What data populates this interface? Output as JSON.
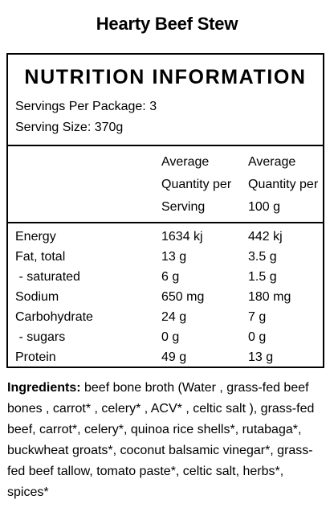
{
  "title": "Hearty Beef Stew",
  "panel": {
    "heading": "NUTRITION INFORMATION",
    "servings_per_package": "Servings Per Package: 3",
    "serving_size": "Serving Size: 370g",
    "columns": [
      [
        "Average",
        "Quantity per",
        "Serving"
      ],
      [
        "Average",
        "Quantity per",
        "100 g"
      ]
    ],
    "rows": [
      {
        "label": "Energy",
        "per_serving": "1634 kj",
        "per_100g": "442 kj"
      },
      {
        "label": "Fat, total",
        "per_serving": "13 g",
        "per_100g": "3.5 g"
      },
      {
        "label": " - saturated",
        "per_serving": "6 g",
        "per_100g": "1.5 g"
      },
      {
        "label": "Sodium",
        "per_serving": "650 mg",
        "per_100g": "180 mg"
      },
      {
        "label": "Carbohydrate",
        "per_serving": "24 g",
        "per_100g": "7 g"
      },
      {
        "label": " - sugars",
        "per_serving": "0 g",
        "per_100g": "0 g"
      },
      {
        "label": "Protein",
        "per_serving": "49 g",
        "per_100g": "13 g"
      }
    ]
  },
  "ingredients": {
    "label": "Ingredients:",
    "text": " beef bone broth (Water , grass-fed beef bones , carrot* , celery* , ACV* , celtic salt ), grass-fed beef, carrot*, celery*, quinoa rice shells*, rutabaga*, buckwheat groats*, coconut balsamic vinegar*, grass-fed beef tallow, tomato paste*, celtic salt, herbs*, spices*"
  }
}
